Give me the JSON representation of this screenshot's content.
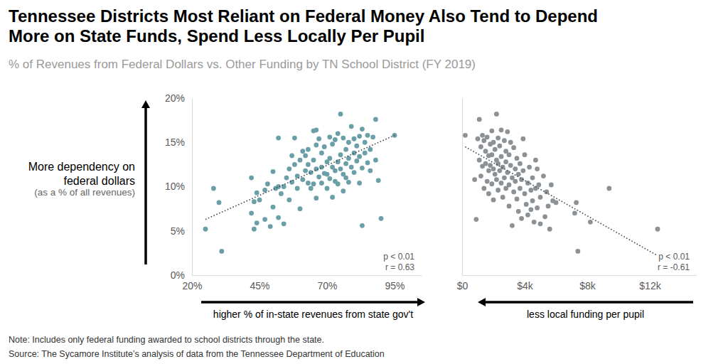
{
  "header": {
    "title": [
      "Tennessee Districts Most Reliant on Federal Money Also Tend to Depend",
      "More on State Funds, Spend Less Locally Per Pupil"
    ],
    "subtitle": "% of Revenues from Federal Dollars vs. Other Funding by TN School District (FY 2019)"
  },
  "footer": {
    "note": "Note: Includes only federal funding awarded to school districts through the state.",
    "source": "Source: The Sycamore Institute’s analysis of data from the Tennessee Department of Education"
  },
  "chart_data": [
    {
      "type": "scatter",
      "ylabel": [
        "More dependency on",
        "federal dollars",
        "(as a % of all revenues)"
      ],
      "xlabel": "higher % of in-state revenues from state gov't",
      "annotations": [
        "p < 0.01",
        "r = 0.63"
      ],
      "xlim": [
        20,
        105
      ],
      "xticks": [
        {
          "value": 20,
          "label": "20%"
        },
        {
          "value": 45,
          "label": "45%"
        },
        {
          "value": 70,
          "label": "70%"
        },
        {
          "value": 95,
          "label": "95%"
        }
      ],
      "ylim": [
        0,
        20
      ],
      "yticks": [
        {
          "value": 0,
          "label": "0%"
        },
        {
          "value": 5,
          "label": "5%"
        },
        {
          "value": 10,
          "label": "10%"
        },
        {
          "value": 15,
          "label": "15%"
        },
        {
          "value": 20,
          "label": "20%"
        }
      ],
      "series": [
        {
          "type": "scatter",
          "marker": "circle",
          "color": "#6b9fa7",
          "x": [
            25,
            28,
            30,
            31,
            42,
            42,
            43,
            43,
            44,
            44,
            45,
            47,
            47,
            48,
            49,
            50,
            50,
            51,
            52,
            52,
            52,
            53,
            54,
            54,
            55,
            56,
            56,
            57,
            57,
            58,
            58,
            59,
            59,
            60,
            60,
            61,
            61,
            62,
            62,
            63,
            63,
            63,
            64,
            64,
            65,
            65,
            65,
            66,
            66,
            66,
            66,
            67,
            67,
            68,
            68,
            68,
            69,
            69,
            70,
            70,
            70,
            71,
            71,
            71,
            72,
            72,
            72,
            73,
            73,
            73,
            74,
            74,
            74,
            75,
            75,
            75,
            76,
            76,
            76,
            77,
            77,
            77,
            78,
            78,
            78,
            79,
            79,
            80,
            80,
            80,
            81,
            81,
            82,
            82,
            82,
            83,
            83,
            83,
            84,
            84,
            85,
            85,
            86,
            86,
            87,
            88,
            88,
            89,
            90,
            95
          ],
          "values": [
            5.2,
            9.8,
            8.2,
            2.7,
            11.0,
            7.0,
            8.3,
            5.2,
            5.9,
            9.3,
            8.5,
            9.6,
            6.3,
            10.3,
            5.5,
            11.7,
            7.7,
            9.8,
            10.0,
            15.5,
            6.5,
            9.2,
            10.0,
            5.8,
            11.0,
            12.0,
            8.5,
            13.5,
            10.5,
            15.5,
            12.5,
            11.2,
            9.8,
            13.0,
            7.5,
            14.0,
            10.8,
            13.5,
            11.8,
            14.2,
            12.5,
            10.4,
            9.8,
            11.6,
            16.3,
            13.0,
            10.3,
            16.4,
            14.7,
            12.0,
            8.7,
            15.4,
            11.1,
            13.8,
            12.2,
            10.4,
            14.5,
            11.5,
            12.8,
            11.4,
            9.8,
            15.6,
            13.2,
            10.9,
            14.8,
            12.2,
            8.8,
            15.3,
            11.8,
            10.6,
            16.0,
            12.8,
            10.3,
            18.2,
            13.6,
            12.0,
            15.5,
            11.4,
            9.5,
            14.2,
            12.6,
            11.0,
            15.0,
            13.2,
            10.5,
            16.8,
            12.2,
            15.4,
            13.8,
            11.6,
            14.6,
            12.9,
            15.7,
            13.4,
            10.4,
            16.5,
            12.1,
            5.6,
            15.0,
            13.8,
            15.8,
            12.7,
            14.2,
            11.8,
            15.6,
            17.6,
            13.0,
            10.7,
            6.4,
            15.8
          ]
        },
        {
          "type": "line",
          "line_style": "dotted",
          "color": "#3f4c56",
          "x": [
            25,
            95
          ],
          "values": [
            6.3,
            15.8
          ]
        }
      ]
    },
    {
      "type": "scatter",
      "xlabel": "less local funding per pupil",
      "annotations": [
        "p < 0.01",
        "r = -0.61"
      ],
      "xlim": [
        0,
        15000
      ],
      "xticks": [
        {
          "value": 0,
          "label": "$0"
        },
        {
          "value": 4000,
          "label": "$4k"
        },
        {
          "value": 8000,
          "label": "$8k"
        },
        {
          "value": 12000,
          "label": "$12k"
        }
      ],
      "ylim": [
        0,
        20
      ],
      "yticks": [
        0,
        5,
        10,
        15,
        20
      ],
      "tick_labels": "x",
      "series": [
        {
          "type": "scatter",
          "marker": "circle",
          "color": "#8c9196",
          "x": [
            200,
            800,
            900,
            1000,
            1100,
            1100,
            1200,
            1200,
            1300,
            1300,
            1400,
            1400,
            1500,
            1500,
            1600,
            1600,
            1700,
            1700,
            1700,
            1800,
            1800,
            1900,
            1900,
            1900,
            2000,
            2000,
            2000,
            2100,
            2100,
            2200,
            2200,
            2200,
            2300,
            2300,
            2300,
            2400,
            2400,
            2500,
            2500,
            2500,
            2600,
            2600,
            2700,
            2700,
            2800,
            2800,
            2800,
            2900,
            2900,
            3000,
            3000,
            3000,
            3100,
            3100,
            3200,
            3200,
            3300,
            3300,
            3400,
            3400,
            3500,
            3500,
            3600,
            3600,
            3700,
            3700,
            3800,
            3800,
            3900,
            3900,
            4000,
            4000,
            4100,
            4200,
            4200,
            4300,
            4400,
            4400,
            4500,
            4500,
            4600,
            4700,
            4700,
            4800,
            4800,
            4900,
            5000,
            5000,
            5200,
            5300,
            5400,
            5500,
            5600,
            5700,
            5800,
            6000,
            7200,
            7300,
            7400,
            8200,
            9400,
            12500
          ],
          "values": [
            15.8,
            10.8,
            6.3,
            15.4,
            17.6,
            13.0,
            14.5,
            11.2,
            15.8,
            12.3,
            15.2,
            9.8,
            14.0,
            12.6,
            15.6,
            10.6,
            13.5,
            11.8,
            9.2,
            14.8,
            12.4,
            16.3,
            13.6,
            10.3,
            15.0,
            12.0,
            8.5,
            14.2,
            11.4,
            18.2,
            13.0,
            10.8,
            15.5,
            12.6,
            9.6,
            14.6,
            11.8,
            16.4,
            13.4,
            10.4,
            12.2,
            8.8,
            15.2,
            11.0,
            14.0,
            12.8,
            9.8,
            16.2,
            11.6,
            13.6,
            10.2,
            7.8,
            15.0,
            12.4,
            5.6,
            11.0,
            14.4,
            9.4,
            12.0,
            10.6,
            13.2,
            8.6,
            11.4,
            7.2,
            12.6,
            9.8,
            10.8,
            6.4,
            15.4,
            11.8,
            9.2,
            13.6,
            8.0,
            10.4,
            6.8,
            12.2,
            9.6,
            7.4,
            11.0,
            8.4,
            6.0,
            13.0,
            9.8,
            7.6,
            12.0,
            10.2,
            5.8,
            8.8,
            11.2,
            6.6,
            9.4,
            7.8,
            5.2,
            10.2,
            8.4,
            8.2,
            7.0,
            8.2,
            2.7,
            6.0,
            9.8,
            5.2
          ]
        },
        {
          "type": "line",
          "line_style": "dotted",
          "color": "#3f4c56",
          "x": [
            200,
            12400
          ],
          "values": [
            14.5,
            2.3
          ]
        }
      ]
    }
  ]
}
